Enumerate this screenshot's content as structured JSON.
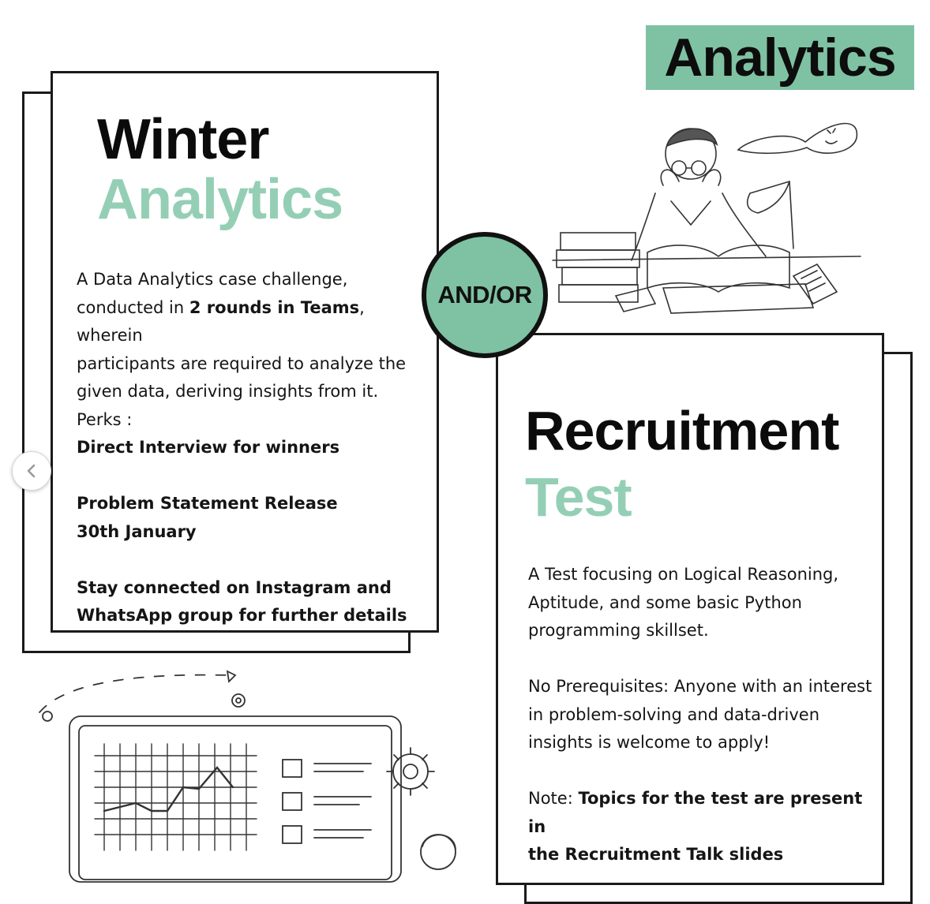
{
  "header": {
    "badge_label": "Analytics"
  },
  "connector": {
    "label": "AND/OR"
  },
  "left_card": {
    "title_line1": "Winter",
    "title_line2": "Analytics",
    "desc_line1": "A Data Analytics case challenge,",
    "desc_line2_pre": "conducted in ",
    "desc_line2_bold": "2 rounds in Teams",
    "desc_line2_post": ", wherein",
    "desc_line3": "participants are required to analyze the",
    "desc_line4": "given data, deriving insights from it.",
    "perks_label": "Perks :",
    "perks_value": "Direct Interview for winners",
    "release_label": "Problem Statement Release",
    "release_date": "30th January",
    "contact_line1": "Stay connected on Instagram and",
    "contact_line2": "WhatsApp group for further details"
  },
  "right_card": {
    "title_line1": "Recruitment",
    "title_line2": "Test",
    "desc_line1": "A Test focusing on Logical Reasoning,",
    "desc_line2": "Aptitude, and some basic Python",
    "desc_line3": "programming skillset.",
    "prereq_line1": "No Prerequisites: Anyone with an interest",
    "prereq_line2": "in problem-solving and data-driven",
    "prereq_line3": "insights is welcome to apply!",
    "note_label": "Note: ",
    "note_bold_line1": "Topics for the test are present in",
    "note_bold_line2": "the Recruitment Talk slides"
  },
  "navigation": {
    "prev_icon": "chevron-left-icon"
  },
  "colors": {
    "accent_green": "#7fc2a3",
    "title_green": "#94cfb5",
    "ink": "#111111"
  }
}
